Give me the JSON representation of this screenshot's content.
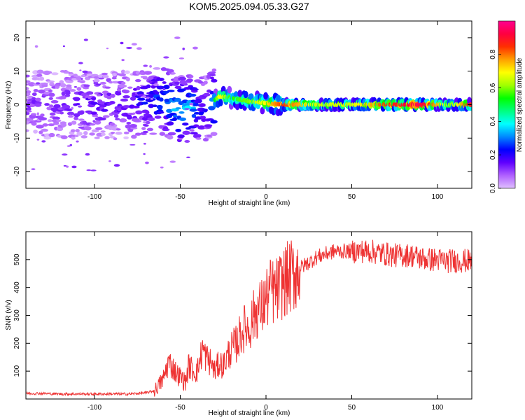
{
  "chart_data": [
    {
      "type": "heatmap",
      "title": "KOM5.2025.094.05.33.G27",
      "xlabel": "Height of straight line (km)",
      "ylabel": "Frequency (Hz)",
      "xlim": [
        -140,
        120
      ],
      "ylim": [
        -25,
        25
      ],
      "xticks": [
        "-100",
        "-50",
        "0",
        "50",
        "100"
      ],
      "yticks": [
        "20",
        "10",
        "0",
        "-10",
        "-20"
      ],
      "colorbar": {
        "label": "Normalized spectral amplitude",
        "range": [
          0,
          1
        ],
        "ticks": [
          "0.0",
          "0.2",
          "0.4",
          "0.6",
          "0.8"
        ],
        "colors": [
          "#e0c0ff",
          "#b060ff",
          "#6000ff",
          "#0000ff",
          "#0088ff",
          "#00ffff",
          "#00ff80",
          "#00ff00",
          "#a0ff00",
          "#ffff00",
          "#ffa000",
          "#ff3000",
          "#ff0040",
          "#ff0090"
        ]
      },
      "signal": [
        {
          "x": -140,
          "y": 0,
          "amplitude": 0.1
        },
        {
          "x": -120,
          "y": 0,
          "amplitude": 0.12
        },
        {
          "x": -100,
          "y": 0,
          "amplitude": 0.15
        },
        {
          "x": -80,
          "y": 0,
          "amplitude": 0.15
        },
        {
          "x": -65,
          "y": 1,
          "amplitude": 0.25
        },
        {
          "x": -58,
          "y": 1,
          "amplitude": 0.3
        },
        {
          "x": -52,
          "y": -1.5,
          "amplitude": 0.35
        },
        {
          "x": -44,
          "y": -1,
          "amplitude": 0.35
        },
        {
          "x": -38,
          "y": -1.5,
          "amplitude": 0.2
        },
        {
          "x": -33,
          "y": 0,
          "amplitude": 0.2
        },
        {
          "x": -27,
          "y": 2.5,
          "amplitude": 0.6
        },
        {
          "x": -20,
          "y": 2,
          "amplitude": 0.45
        },
        {
          "x": -10,
          "y": 1,
          "amplitude": 0.5
        },
        {
          "x": 0,
          "y": 0.5,
          "amplitude": 0.6
        },
        {
          "x": 10,
          "y": 0,
          "amplitude": 0.75
        },
        {
          "x": 30,
          "y": 0,
          "amplitude": 0.55
        },
        {
          "x": 50,
          "y": 0,
          "amplitude": 0.55
        },
        {
          "x": 70,
          "y": 0,
          "amplitude": 0.75
        },
        {
          "x": 90,
          "y": 0,
          "amplitude": 0.85
        },
        {
          "x": 108,
          "y": 0,
          "amplitude": 0.5
        },
        {
          "x": 120,
          "y": 0,
          "amplitude": 0.8
        }
      ]
    },
    {
      "type": "line",
      "xlabel": "Height of straight line (km)",
      "ylabel": "SNR (v/v)",
      "xlim": [
        -140,
        120
      ],
      "ylim": [
        0,
        600
      ],
      "xticks": [
        "-100",
        "-50",
        "0",
        "50",
        "100"
      ],
      "yticks": [
        "500",
        "400",
        "300",
        "200",
        "100"
      ],
      "color": "#ee3333",
      "series": [
        {
          "x": [
            -140,
            -130,
            -120,
            -110,
            -100,
            -90,
            -80,
            -70,
            -65,
            -60,
            -57,
            -55,
            -52,
            -50,
            -47,
            -45,
            -42,
            -40,
            -37,
            -35,
            -32,
            -30,
            -27,
            -25,
            -22,
            -20,
            -17,
            -15,
            -12,
            -10,
            -7,
            -5,
            -2,
            0,
            3,
            5,
            8,
            10,
            15,
            20,
            25,
            30,
            35,
            40,
            45,
            50,
            55,
            60,
            65,
            70,
            75,
            80,
            85,
            90,
            95,
            100,
            105,
            110,
            115,
            120
          ],
          "y": [
            20,
            20,
            18,
            18,
            18,
            18,
            18,
            22,
            30,
            70,
            130,
            120,
            90,
            80,
            60,
            120,
            100,
            100,
            180,
            150,
            130,
            100,
            130,
            120,
            160,
            180,
            200,
            230,
            260,
            250,
            300,
            320,
            330,
            360,
            390,
            380,
            400,
            420,
            440,
            470,
            490,
            510,
            520,
            530,
            530,
            530,
            530,
            530,
            525,
            520,
            515,
            515,
            515,
            505,
            500,
            500,
            495,
            495,
            495,
            495
          ]
        }
      ]
    }
  ]
}
